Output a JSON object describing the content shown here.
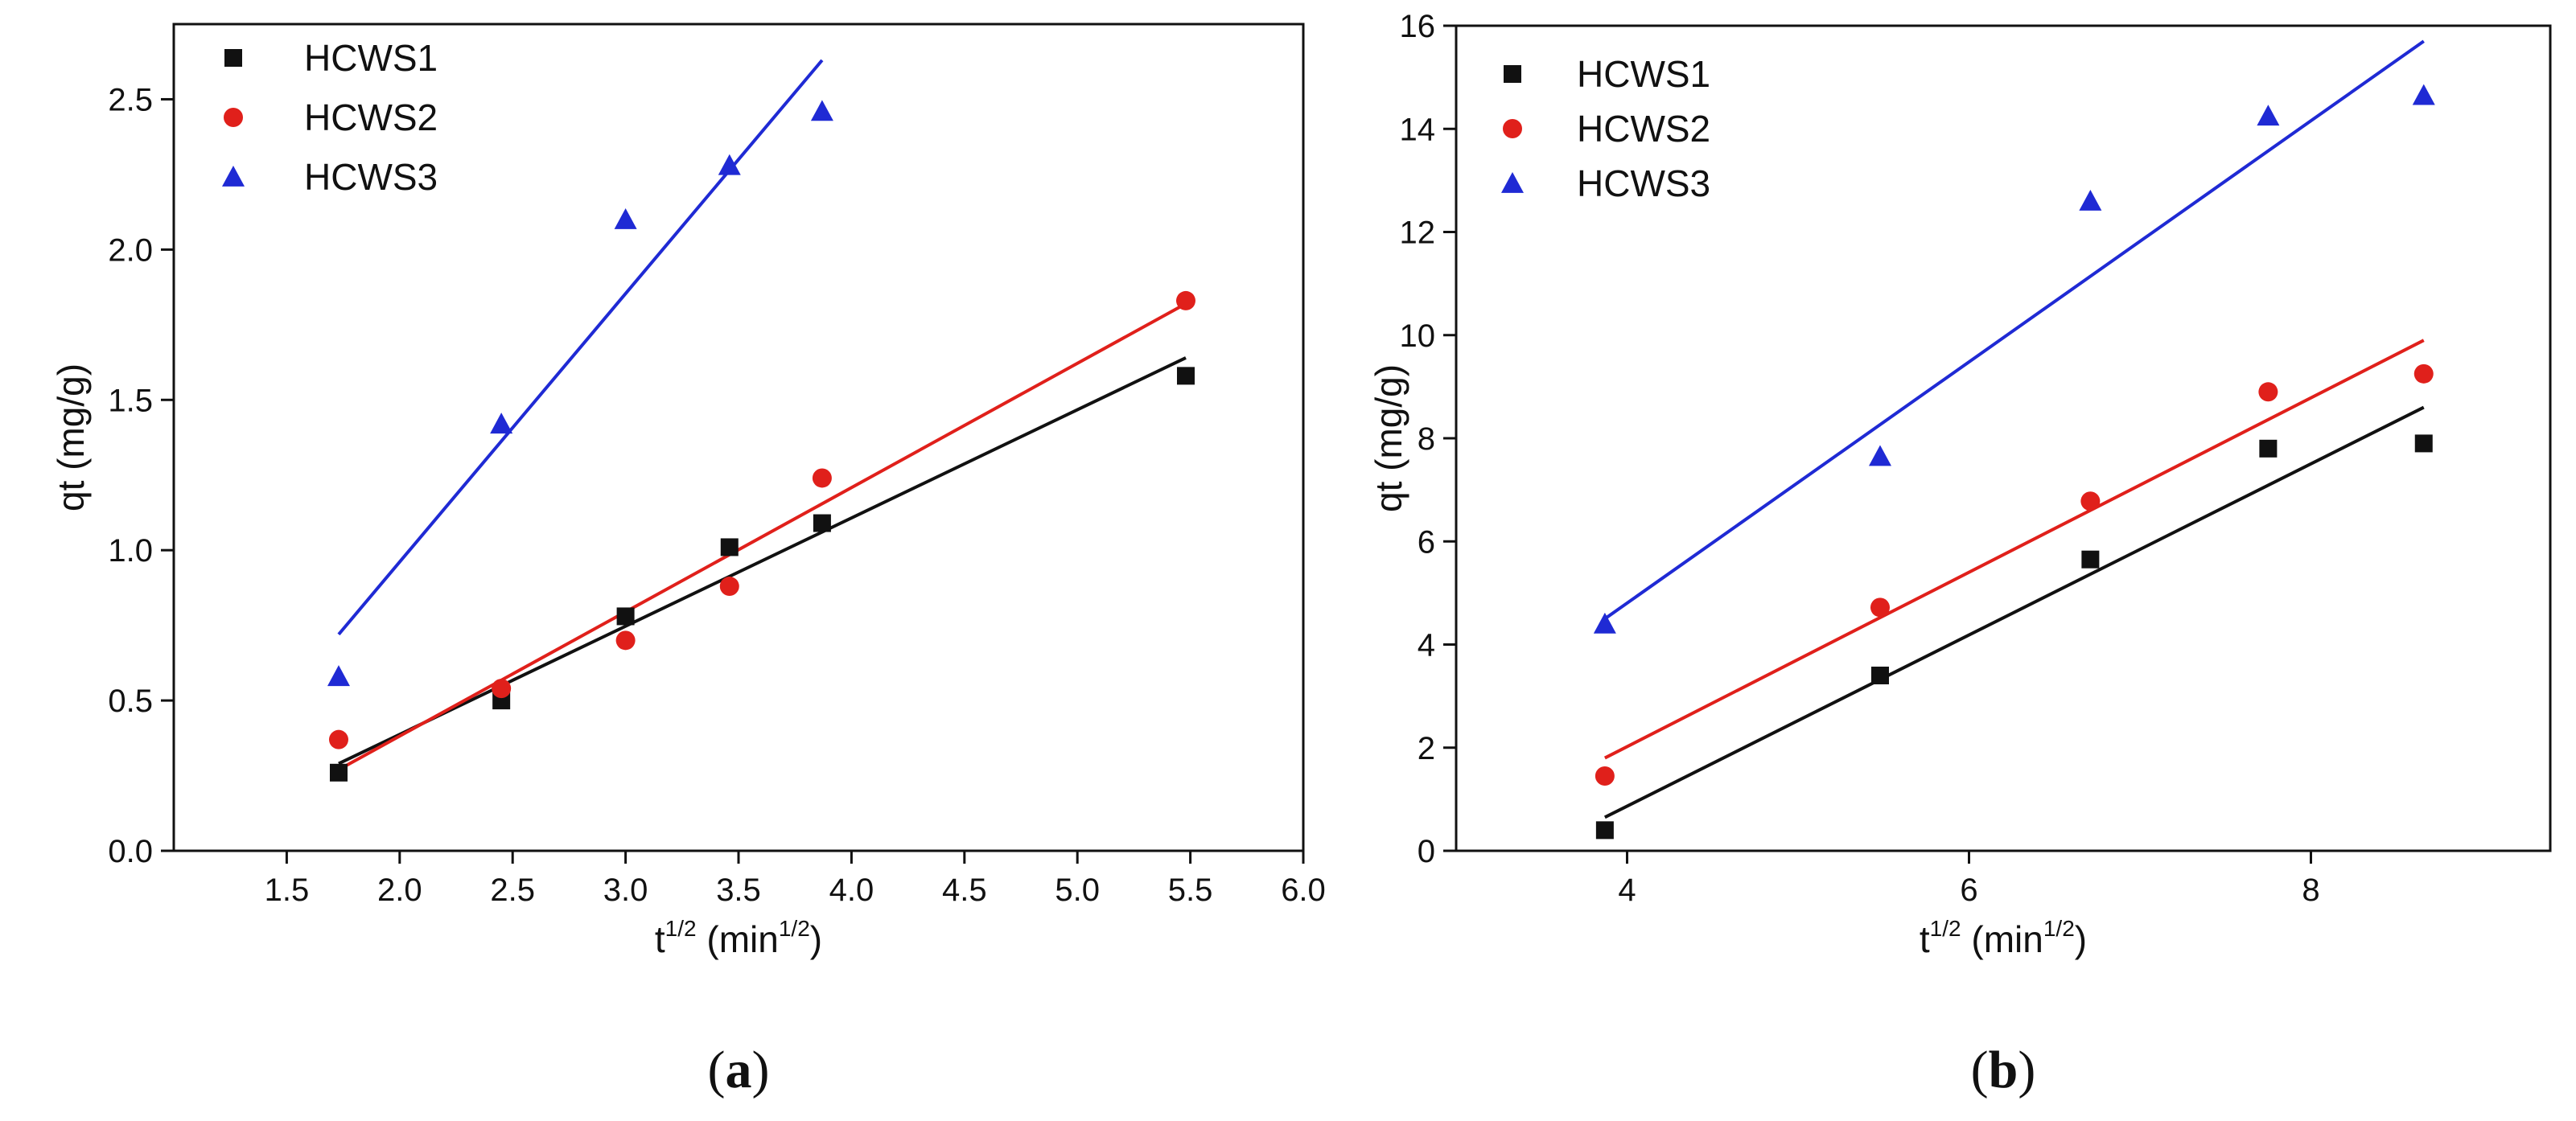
{
  "figure": {
    "colors": {
      "HCWS1": "#111111",
      "HCWS2": "#e0201b",
      "HCWS3": "#1f2ad4"
    }
  },
  "chart_data": [
    {
      "type": "scatter",
      "panel_label": {
        "open": "(",
        "letter": "a",
        "close": ")"
      },
      "title": "",
      "xlabel": {
        "base": "t",
        "sup": "1/2",
        "unit_open": " (min",
        "unit_sup": "1/2",
        "unit_close": ")"
      },
      "ylabel": "qt (mg/g)",
      "xlim": [
        1.0,
        6.0
      ],
      "ylim": [
        0.0,
        2.75
      ],
      "xticks": [
        1.5,
        2.0,
        2.5,
        3.0,
        3.5,
        4.0,
        4.5,
        5.0,
        5.5,
        6.0
      ],
      "xtick_labels": [
        "1.5",
        "2.0",
        "2.5",
        "3.0",
        "3.5",
        "4.0",
        "4.5",
        "5.0",
        "5.5",
        "6.0"
      ],
      "yticks": [
        0.0,
        0.5,
        1.0,
        1.5,
        2.0,
        2.5
      ],
      "ytick_labels": [
        "0.0",
        "0.5",
        "1.0",
        "1.5",
        "2.0",
        "2.5"
      ],
      "legend_position": "top-left",
      "series": [
        {
          "name": "HCWS1",
          "marker": "square",
          "color": "#111111",
          "x": [
            1.73,
            2.45,
            3.0,
            3.46,
            3.87,
            5.48
          ],
          "y": [
            0.26,
            0.5,
            0.78,
            1.01,
            1.09,
            1.58
          ],
          "fit": {
            "x": [
              1.73,
              5.48
            ],
            "y": [
              0.29,
              1.64
            ]
          }
        },
        {
          "name": "HCWS2",
          "marker": "circle",
          "color": "#e0201b",
          "x": [
            1.73,
            2.45,
            3.0,
            3.46,
            3.87,
            5.48
          ],
          "y": [
            0.37,
            0.54,
            0.7,
            0.88,
            1.24,
            1.83
          ],
          "fit": {
            "x": [
              1.73,
              5.48
            ],
            "y": [
              0.27,
              1.82
            ]
          }
        },
        {
          "name": "HCWS3",
          "marker": "triangle",
          "color": "#1f2ad4",
          "x": [
            1.73,
            2.45,
            3.0,
            3.46,
            3.87
          ],
          "y": [
            0.58,
            1.42,
            2.1,
            2.28,
            2.46
          ],
          "fit": {
            "x": [
              1.73,
              3.87
            ],
            "y": [
              0.72,
              2.63
            ]
          }
        }
      ]
    },
    {
      "type": "scatter",
      "panel_label": {
        "open": "(",
        "letter": "b",
        "close": ")"
      },
      "title": "",
      "xlabel": {
        "base": "t",
        "sup": "1/2",
        "unit_open": " (min",
        "unit_sup": "1/2",
        "unit_close": ")"
      },
      "ylabel": "qt (mg/g)",
      "xlim": [
        3.0,
        9.4
      ],
      "ylim": [
        0,
        16
      ],
      "xticks": [
        4,
        6,
        8
      ],
      "xtick_labels": [
        "4",
        "6",
        "8"
      ],
      "yticks": [
        0,
        2,
        4,
        6,
        8,
        10,
        12,
        14,
        16
      ],
      "ytick_labels": [
        "0",
        "2",
        "4",
        "6",
        "8",
        "10",
        "12",
        "14",
        "16"
      ],
      "legend_position": "top-left",
      "series": [
        {
          "name": "HCWS1",
          "marker": "square",
          "color": "#111111",
          "x": [
            3.87,
            5.48,
            6.71,
            7.75,
            8.66
          ],
          "y": [
            0.4,
            3.4,
            5.65,
            7.8,
            7.9
          ],
          "fit": {
            "x": [
              3.87,
              8.66
            ],
            "y": [
              0.65,
              8.6
            ]
          }
        },
        {
          "name": "HCWS2",
          "marker": "circle",
          "color": "#e0201b",
          "x": [
            3.87,
            5.48,
            6.71,
            7.75,
            8.66
          ],
          "y": [
            1.45,
            4.72,
            6.78,
            8.9,
            9.25
          ],
          "fit": {
            "x": [
              3.87,
              8.66
            ],
            "y": [
              1.8,
              9.9
            ]
          }
        },
        {
          "name": "HCWS3",
          "marker": "triangle",
          "color": "#1f2ad4",
          "x": [
            3.87,
            5.48,
            6.71,
            7.75,
            8.66
          ],
          "y": [
            4.4,
            7.65,
            12.6,
            14.25,
            14.65
          ],
          "fit": {
            "x": [
              3.87,
              8.66
            ],
            "y": [
              4.5,
              15.7
            ]
          }
        }
      ]
    }
  ]
}
